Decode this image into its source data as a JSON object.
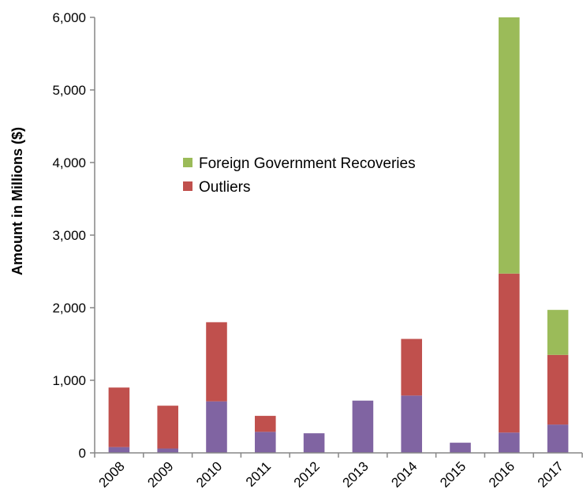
{
  "chart_data": {
    "type": "bar",
    "stacked": true,
    "categories": [
      "2008",
      "2009",
      "2010",
      "2011",
      "2012",
      "2013",
      "2014",
      "2015",
      "2016",
      "2017"
    ],
    "series": [
      {
        "values": [
          80,
          60,
          710,
          290,
          270,
          720,
          790,
          140,
          280,
          390
        ],
        "color": "#8064a2"
      },
      {
        "name": "Outliers",
        "values": [
          820,
          590,
          1090,
          220,
          0,
          0,
          780,
          0,
          2190,
          960
        ],
        "color": "#c0504d"
      },
      {
        "name": "Foreign Government Recoveries",
        "values": [
          0,
          0,
          0,
          0,
          0,
          0,
          0,
          0,
          3530,
          620
        ],
        "color": "#9bbb59"
      }
    ],
    "ylabel": "Amount in Millions ($)",
    "ylim": [
      0,
      6000
    ],
    "yticks": [
      "0",
      "1,000",
      "2,000",
      "3,000",
      "4,000",
      "5,000",
      "6,000"
    ],
    "grid": false,
    "legend": {
      "placement": "upper-left-center",
      "entries": [
        {
          "label": "Foreign Government Recoveries",
          "color": "#9bbb59"
        },
        {
          "label": "Outliers",
          "color": "#c0504d"
        }
      ]
    }
  }
}
